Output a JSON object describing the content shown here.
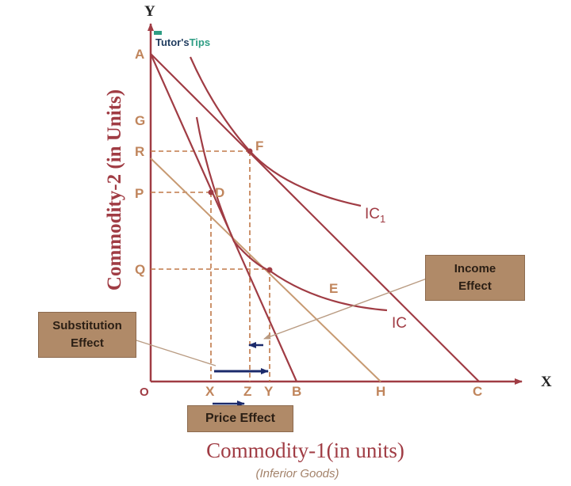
{
  "logo": {
    "part1": "Tutor's",
    "part2": "Tips"
  },
  "axes": {
    "x": "X",
    "y": "Y",
    "origin": "O"
  },
  "ylabel": "Commodity-2 (in Units)",
  "xlabel": "Commodity-1(in units)",
  "xsublabel": "(Inferior Goods)",
  "points": {
    "A": "A",
    "G": "G",
    "R": "R",
    "P": "P",
    "Q": "Q",
    "F": "F",
    "D": "D",
    "E": "E",
    "X": "X",
    "Z": "Z",
    "Y": "Y",
    "B": "B",
    "H": "H",
    "C": "C"
  },
  "curves": {
    "ic1_base": "IC",
    "ic1_sub": "1",
    "ic": "IC"
  },
  "boxes": {
    "income_line1": "Income",
    "income_line2": "Effect",
    "substitution_line1": "Substitution",
    "substitution_line2": "Effect",
    "price": "Price Effect"
  },
  "colors": {
    "primary": "#a03c44",
    "secondary": "#c79a72",
    "label": "#c0855c",
    "arrow": "#1b2a6b",
    "box": "#b08a68"
  }
}
